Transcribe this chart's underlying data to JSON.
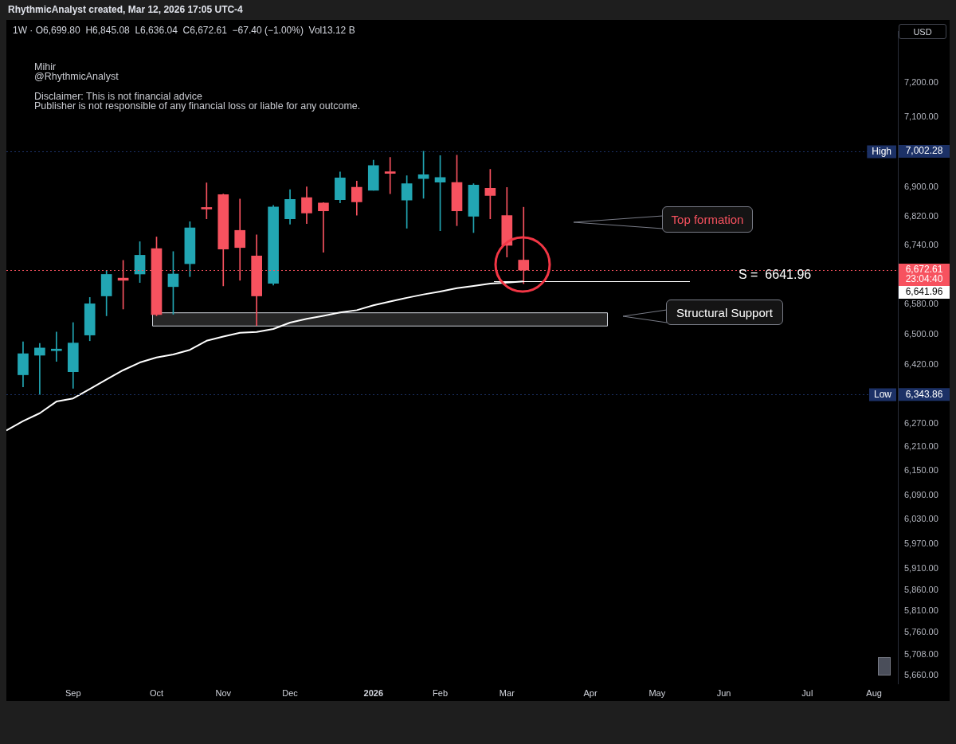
{
  "chart_data": {
    "type": "candlestick",
    "title": "RhythmicAnalyst created, Mar 12, 2026 17:05 UTC-4",
    "subtitle": "1W · O6,699.80  H6,845.08  L6,636.04  C6,672.61  −67.40 (−1.00%)  Vol13.12 B",
    "x": [
      "2025-08-11",
      "2025-08-18",
      "2025-08-25",
      "2025-09-01",
      "2025-09-08",
      "2025-09-15",
      "2025-09-22",
      "2025-09-29",
      "2025-10-06",
      "2025-10-13",
      "2025-10-20",
      "2025-10-27",
      "2025-11-03",
      "2025-11-10",
      "2025-11-17",
      "2025-11-24",
      "2025-12-01",
      "2025-12-08",
      "2025-12-15",
      "2025-12-22",
      "2025-12-29",
      "2026-01-05",
      "2026-01-12",
      "2026-01-19",
      "2026-01-26",
      "2026-02-02",
      "2026-02-09",
      "2026-02-16",
      "2026-02-23",
      "2026-03-02",
      "2026-03-09"
    ],
    "ohlc": [
      [
        6395,
        6481,
        6364,
        6450
      ],
      [
        6446,
        6477,
        6343.86,
        6465
      ],
      [
        6458,
        6507,
        6430,
        6462
      ],
      [
        6403,
        6532,
        6360,
        6478
      ],
      [
        6499,
        6599,
        6484,
        6582
      ],
      [
        6603,
        6672,
        6550,
        6661
      ],
      [
        6651,
        6699,
        6568,
        6645
      ],
      [
        6662,
        6750,
        6639,
        6713
      ],
      [
        6731,
        6763,
        6550,
        6553
      ],
      [
        6628,
        6723,
        6554,
        6662
      ],
      [
        6690,
        6805,
        6655,
        6788
      ],
      [
        6843,
        6913,
        6813,
        6840
      ],
      [
        6880,
        6882,
        6630,
        6730
      ],
      [
        6781,
        6868,
        6645,
        6734
      ],
      [
        6711,
        6769,
        6524,
        6603
      ],
      [
        6637,
        6850,
        6632,
        6846
      ],
      [
        6813,
        6894,
        6798,
        6867
      ],
      [
        6872,
        6902,
        6800,
        6829
      ],
      [
        6857,
        6858,
        6721,
        6835
      ],
      [
        6866,
        6944,
        6857,
        6927
      ],
      [
        6901,
        6918,
        6823,
        6860
      ],
      [
        6892,
        6977,
        6892,
        6962
      ],
      [
        6942,
        6985,
        6883,
        6940
      ],
      [
        6865,
        6933,
        6787,
        6911
      ],
      [
        6925,
        7002.28,
        6870,
        6936
      ],
      [
        6915,
        6990,
        6780,
        6928
      ],
      [
        6914,
        6991,
        6794,
        6835
      ],
      [
        6820,
        6911,
        6775,
        6907
      ],
      [
        6898,
        6951,
        6813,
        6878
      ],
      [
        6822,
        6900,
        6708,
        6740
      ],
      [
        6699.8,
        6845.08,
        6636.04,
        6672.61
      ]
    ],
    "colors": [
      "#22a6b3",
      "#22a6b3",
      "#22a6b3",
      "#22a6b3",
      "#22a6b3",
      "#22a6b3",
      "#f7525f",
      "#22a6b3",
      "#f7525f",
      "#22a6b3",
      "#22a6b3",
      "#f7525f",
      "#f7525f",
      "#f7525f",
      "#f7525f",
      "#22a6b3",
      "#22a6b3",
      "#f7525f",
      "#f7525f",
      "#22a6b3",
      "#f7525f",
      "#22a6b3",
      "#f7525f",
      "#22a6b3",
      "#22a6b3",
      "#22a6b3",
      "#f7525f",
      "#22a6b3",
      "#f7525f",
      "#f7525f",
      "#f7525f"
    ],
    "series": [
      {
        "type": "line",
        "color": "#ffffff",
        "x": [
          "2025-08-04",
          "2025-08-11",
          "2025-08-18",
          "2025-08-25",
          "2025-09-01",
          "2025-09-08",
          "2025-09-15",
          "2025-09-22",
          "2025-09-29",
          "2025-10-06",
          "2025-10-13",
          "2025-10-20",
          "2025-10-27",
          "2025-11-03",
          "2025-11-10",
          "2025-11-17",
          "2025-11-24",
          "2025-12-01",
          "2025-12-08",
          "2025-12-15",
          "2025-12-22",
          "2025-12-29",
          "2026-01-05",
          "2026-01-12",
          "2026-01-19",
          "2026-01-26",
          "2026-02-02",
          "2026-02-09",
          "2026-02-16",
          "2026-02-23",
          "2026-03-02",
          "2026-03-09"
        ],
        "values": [
          6252,
          6276,
          6296,
          6326,
          6334,
          6358,
          6383,
          6407,
          6427,
          6440,
          6448,
          6460,
          6484,
          6495,
          6505,
          6507,
          6515,
          6532,
          6542,
          6550,
          6559,
          6565,
          6578,
          6588,
          6598,
          6607,
          6615,
          6624,
          6630,
          6636,
          6639,
          6641.96
        ]
      }
    ],
    "xlim": [
      "2025-08-04",
      "2026-08-13"
    ],
    "xticks": [
      {
        "value": "2025-09-01",
        "label": "Sep"
      },
      {
        "value": "2025-10-06",
        "label": "Oct"
      },
      {
        "value": "2025-11-03",
        "label": "Nov"
      },
      {
        "value": "2025-12-01",
        "label": "Dec"
      },
      {
        "value": "2026-01-05",
        "label": "2026"
      },
      {
        "value": "2026-02-02",
        "label": "Feb"
      },
      {
        "value": "2026-03-02",
        "label": "Mar"
      },
      {
        "value": "2026-04-06",
        "label": "Apr"
      },
      {
        "value": "2026-05-04",
        "label": "May"
      },
      {
        "value": "2026-06-01",
        "label": "Jun"
      },
      {
        "value": "2026-07-06",
        "label": "Jul"
      },
      {
        "value": "2026-08-03",
        "label": "Aug"
      }
    ],
    "log": "y",
    "ylim": [
      5642,
      7351
    ],
    "yticks": [
      {
        "value": 7200,
        "label": "7,200.00"
      },
      {
        "value": 7100,
        "label": "7,100.00"
      },
      {
        "value": 6900,
        "label": "6,900.00"
      },
      {
        "value": 6820,
        "label": "6,820.00"
      },
      {
        "value": 6740,
        "label": "6,740.00"
      },
      {
        "value": 6580,
        "label": "6,580.00"
      },
      {
        "value": 6500,
        "label": "6,500.00"
      },
      {
        "value": 6420,
        "label": "6,420.00"
      },
      {
        "value": 6270,
        "label": "6,270.00"
      },
      {
        "value": 6210,
        "label": "6,210.00"
      },
      {
        "value": 6150,
        "label": "6,150.00"
      },
      {
        "value": 6090,
        "label": "6,090.00"
      },
      {
        "value": 6030,
        "label": "6,030.00"
      },
      {
        "value": 5970,
        "label": "5,970.00"
      },
      {
        "value": 5910,
        "label": "5,910.00"
      },
      {
        "value": 5860,
        "label": "5,860.00"
      },
      {
        "value": 5810,
        "label": "5,810.00"
      },
      {
        "value": 5760,
        "label": "5,760.00"
      },
      {
        "value": 5708,
        "label": "5,708.00"
      },
      {
        "value": 5660,
        "label": "5,660.00"
      }
    ],
    "ref_lines": [
      {
        "axis": "y",
        "value": 7002.28,
        "label": "High",
        "color": "#1c3166",
        "line_style": "dotted"
      },
      {
        "axis": "y",
        "value": 6343.86,
        "label": "Low",
        "color": "#1c3166",
        "line_style": "dotted"
      },
      {
        "axis": "y",
        "value": 6672.61,
        "color": "#f7525f",
        "line_style": "dotted"
      },
      {
        "axis": "y",
        "value": 6641.96,
        "label": "S =  6641.96",
        "color": "#ffffff"
      }
    ],
    "bands": [
      {
        "axis": "y",
        "from": 6524,
        "to": 6559,
        "color": "#262626"
      }
    ],
    "annotations": [
      "Mihir",
      "@RhythmicAnalyst",
      "Disclaimer: This is not financial advice",
      "Publisher is not responsible of any financial loss or liable for any outcome.",
      "Top formation",
      "USD",
      "Structural Support",
      "7,002.28",
      "6,672.61",
      "23:04:40",
      "6,641.96",
      "6,343.86"
    ]
  }
}
